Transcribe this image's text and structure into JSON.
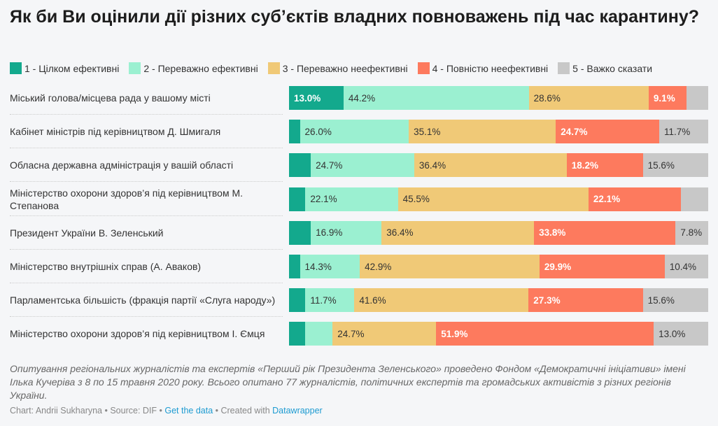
{
  "chart_data": {
    "type": "bar",
    "orientation": "horizontal",
    "stacked": true,
    "title": "Як би Ви оцінили дії різних суб’єктів владних повноважень під час карантину?",
    "unit": "%",
    "xlim": [
      0,
      100
    ],
    "categories": [
      "Міський голова/місцева рада у вашому місті",
      "Кабінет міністрів під керівництвом Д. Шмигаля",
      "Обласна державна адміністрація у вашій області",
      "Міністерство охорони здоров’я під керівництвом М. Степанова",
      "Президент України В. Зеленський",
      "Міністерство внутрішніх справ (А. Аваков)",
      "Парламентська більшість (фракція партії «Слуга народу»)",
      "Міністерство охорони здоров’я під керівництвом І. Ємця"
    ],
    "series": [
      {
        "name": "1 - Цілком ефективні",
        "color": "#13a98d",
        "label_color": "#ffffff",
        "bold": true,
        "values": [
          13.0,
          2.6,
          5.2,
          3.9,
          5.2,
          2.6,
          3.9,
          3.9
        ]
      },
      {
        "name": "2 - Переважно ефективні",
        "color": "#9bf0d1",
        "label_color": "#333333",
        "bold": false,
        "values": [
          44.2,
          26.0,
          24.7,
          22.1,
          16.9,
          14.3,
          11.7,
          6.5
        ]
      },
      {
        "name": "3 - Переважно неефективні",
        "color": "#f0c977",
        "label_color": "#333333",
        "bold": false,
        "values": [
          28.6,
          35.1,
          36.4,
          45.5,
          36.4,
          42.9,
          41.6,
          24.7
        ]
      },
      {
        "name": "4 - Повністю неефективні",
        "color": "#fd7a5e",
        "label_color": "#ffffff",
        "bold": true,
        "values": [
          9.1,
          24.7,
          18.2,
          22.1,
          33.8,
          29.9,
          27.3,
          51.9
        ]
      },
      {
        "name": "5 - Важко сказати",
        "color": "#c8c8c8",
        "label_color": "#333333",
        "bold": false,
        "values": [
          5.1,
          11.7,
          15.6,
          6.5,
          7.8,
          10.4,
          15.6,
          13.0
        ]
      }
    ]
  },
  "note": "Опитування регіональних журналістів та експертів «Перший рік Президента Зеленського» проведено Фондом «Демократичні ініціативи» імені Ілька Кучеріва з 8 по 15 травня 2020 року. Всього опитано 77 журналістів, політичних експертів та громадських активістів з різних регіонів України.",
  "credit": {
    "prefix": "Chart: Andrii Sukharyna • Source: DIF • ",
    "get_data": "Get the data",
    "mid": " • Created with ",
    "datawrapper": "Datawrapper"
  }
}
